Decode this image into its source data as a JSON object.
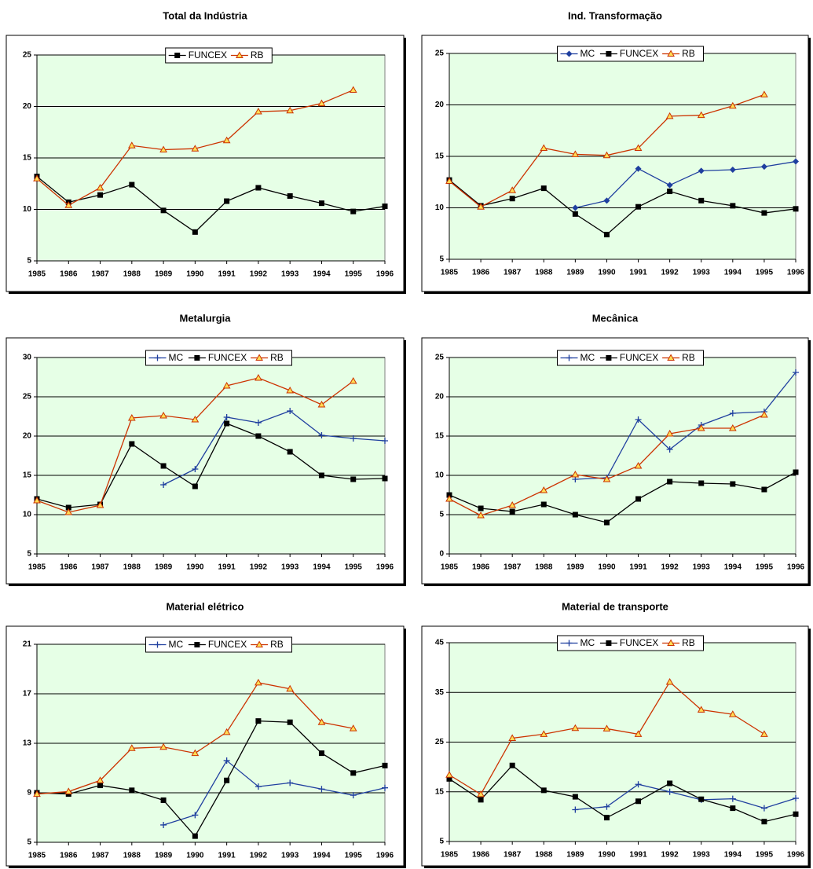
{
  "chart_data": [
    {
      "type": "line",
      "title": "Total da Indústria",
      "categories": [
        "1985",
        "1986",
        "1987",
        "1988",
        "1989",
        "1990",
        "1991",
        "1992",
        "1993",
        "1994",
        "1995",
        "1996"
      ],
      "ylim": [
        5,
        25
      ],
      "yticks": [
        5,
        10,
        15,
        20,
        25
      ],
      "grid": true,
      "legend": "top",
      "series": [
        {
          "name": "FUNCEX",
          "color": "#000000",
          "marker": "square",
          "values": [
            13.2,
            10.7,
            11.4,
            12.4,
            9.9,
            7.8,
            10.8,
            12.1,
            11.3,
            10.6,
            9.8,
            10.3
          ]
        },
        {
          "name": "RB",
          "color": "#cc3300",
          "marker": "triangle",
          "values": [
            13.0,
            10.4,
            12.1,
            16.2,
            15.8,
            15.9,
            16.7,
            19.5,
            19.6,
            20.3,
            21.6,
            null
          ]
        }
      ]
    },
    {
      "type": "line",
      "title": "Ind. Transformação",
      "categories": [
        "1985",
        "1986",
        "1987",
        "1988",
        "1989",
        "1990",
        "1991",
        "1992",
        "1993",
        "1994",
        "1995",
        "1996"
      ],
      "ylim": [
        5,
        25
      ],
      "yticks": [
        5,
        10,
        15,
        20,
        25
      ],
      "grid": true,
      "legend": "top",
      "series": [
        {
          "name": "MC",
          "color": "#1f3f9f",
          "marker": "diamond",
          "values": [
            null,
            null,
            null,
            null,
            10.0,
            10.7,
            13.8,
            12.2,
            13.6,
            13.7,
            14.0,
            14.5
          ]
        },
        {
          "name": "FUNCEX",
          "color": "#000000",
          "marker": "square",
          "values": [
            12.7,
            10.2,
            10.9,
            11.9,
            9.4,
            7.4,
            10.1,
            11.6,
            10.7,
            10.2,
            9.5,
            9.9
          ]
        },
        {
          "name": "RB",
          "color": "#cc3300",
          "marker": "triangle",
          "values": [
            12.6,
            10.1,
            11.7,
            15.8,
            15.2,
            15.1,
            15.8,
            18.9,
            19.0,
            19.9,
            21.0,
            null
          ]
        }
      ]
    },
    {
      "type": "line",
      "title": "Metalurgia",
      "categories": [
        "1985",
        "1986",
        "1987",
        "1988",
        "1989",
        "1990",
        "1991",
        "1992",
        "1993",
        "1994",
        "1995",
        "1996"
      ],
      "ylim": [
        5,
        30
      ],
      "yticks": [
        5,
        10,
        15,
        20,
        25,
        30
      ],
      "grid": true,
      "legend": "top",
      "series": [
        {
          "name": "MC",
          "color": "#1f3f9f",
          "marker": "plus",
          "values": [
            null,
            null,
            null,
            null,
            13.8,
            15.8,
            22.4,
            21.7,
            23.2,
            20.1,
            19.7,
            19.4
          ]
        },
        {
          "name": "FUNCEX",
          "color": "#000000",
          "marker": "square",
          "values": [
            12.0,
            10.9,
            11.3,
            19.0,
            16.2,
            13.6,
            21.6,
            20.0,
            18.0,
            15.0,
            14.5,
            14.6
          ]
        },
        {
          "name": "RB",
          "color": "#cc3300",
          "marker": "triangle",
          "values": [
            11.8,
            10.3,
            11.2,
            22.3,
            22.6,
            22.1,
            26.4,
            27.4,
            25.8,
            24.0,
            27.0,
            null
          ]
        }
      ]
    },
    {
      "type": "line",
      "title": "Mecânica",
      "categories": [
        "1985",
        "1986",
        "1987",
        "1988",
        "1989",
        "1990",
        "1991",
        "1992",
        "1993",
        "1994",
        "1995",
        "1996"
      ],
      "ylim": [
        0,
        25
      ],
      "yticks": [
        0,
        5,
        10,
        15,
        20,
        25
      ],
      "grid": true,
      "legend": "top",
      "series": [
        {
          "name": "MC",
          "color": "#1f3f9f",
          "marker": "plus",
          "values": [
            null,
            null,
            null,
            null,
            9.5,
            9.7,
            17.1,
            13.3,
            16.4,
            17.9,
            18.1,
            23.1
          ]
        },
        {
          "name": "FUNCEX",
          "color": "#000000",
          "marker": "square",
          "values": [
            7.5,
            5.8,
            5.4,
            6.3,
            5.0,
            4.0,
            7.0,
            9.2,
            9.0,
            8.9,
            8.2,
            10.4
          ]
        },
        {
          "name": "RB",
          "color": "#cc3300",
          "marker": "triangle",
          "values": [
            7.0,
            4.9,
            6.2,
            8.1,
            10.1,
            9.5,
            11.2,
            15.3,
            16.0,
            16.0,
            17.7,
            null
          ]
        }
      ]
    },
    {
      "type": "line",
      "title": "Material elétrico",
      "categories": [
        "1985",
        "1986",
        "1987",
        "1988",
        "1989",
        "1990",
        "1991",
        "1992",
        "1993",
        "1994",
        "1995",
        "1996"
      ],
      "ylim": [
        5,
        21
      ],
      "yticks": [
        5,
        9,
        13,
        17,
        21
      ],
      "grid": true,
      "legend": "top",
      "series": [
        {
          "name": "MC",
          "color": "#1f3f9f",
          "marker": "plus",
          "values": [
            null,
            null,
            null,
            null,
            6.4,
            7.2,
            11.6,
            9.5,
            9.8,
            9.3,
            8.8,
            9.4
          ]
        },
        {
          "name": "FUNCEX",
          "color": "#000000",
          "marker": "square",
          "values": [
            9.0,
            8.9,
            9.6,
            9.2,
            8.4,
            5.5,
            10.0,
            14.8,
            14.7,
            12.2,
            10.6,
            11.2
          ]
        },
        {
          "name": "RB",
          "color": "#cc3300",
          "marker": "triangle",
          "values": [
            8.9,
            9.1,
            10.0,
            12.6,
            12.7,
            12.2,
            13.9,
            17.9,
            17.4,
            14.7,
            14.2,
            null
          ]
        }
      ]
    },
    {
      "type": "line",
      "title": "Material de transporte",
      "categories": [
        "1985",
        "1986",
        "1987",
        "1988",
        "1989",
        "1990",
        "1991",
        "1992",
        "1993",
        "1994",
        "1995",
        "1996"
      ],
      "ylim": [
        5,
        45
      ],
      "yticks": [
        5,
        15,
        25,
        35,
        45
      ],
      "grid": true,
      "legend": "top",
      "series": [
        {
          "name": "MC",
          "color": "#1f3f9f",
          "marker": "plus",
          "values": [
            null,
            null,
            null,
            null,
            11.4,
            12.0,
            16.5,
            15.0,
            13.4,
            13.6,
            11.7,
            13.7
          ]
        },
        {
          "name": "FUNCEX",
          "color": "#000000",
          "marker": "square",
          "values": [
            17.6,
            13.4,
            20.3,
            15.3,
            14.0,
            9.8,
            13.1,
            16.7,
            13.5,
            11.7,
            9.0,
            10.5
          ]
        },
        {
          "name": "RB",
          "color": "#cc3300",
          "marker": "triangle",
          "values": [
            18.4,
            14.5,
            25.8,
            26.6,
            27.8,
            27.7,
            26.6,
            37.1,
            31.5,
            30.6,
            26.6,
            null
          ]
        }
      ]
    }
  ]
}
